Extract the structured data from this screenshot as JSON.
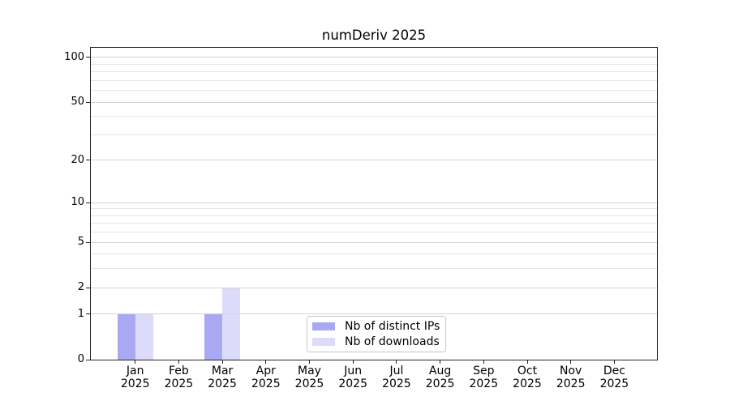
{
  "chart_data": {
    "type": "bar",
    "title": "numDeriv 2025",
    "x_categories": [
      "Jan",
      "Feb",
      "Mar",
      "Apr",
      "May",
      "Jun",
      "Jul",
      "Aug",
      "Sep",
      "Oct",
      "Nov",
      "Dec"
    ],
    "x_year": "2025",
    "series": [
      {
        "name": "Nb of distinct IPs",
        "color": "#a9a9f3",
        "values": [
          1,
          0,
          1,
          0,
          0,
          0,
          0,
          0,
          0,
          0,
          0,
          0
        ]
      },
      {
        "name": "Nb of downloads",
        "color": "#dcdcfa",
        "values": [
          1,
          0,
          2,
          0,
          0,
          0,
          0,
          0,
          0,
          0,
          0,
          0
        ]
      }
    ],
    "yscale": "log10(value+1)",
    "ylim": [
      0,
      116
    ],
    "y_major_ticks": [
      0,
      1,
      2,
      5,
      10,
      20,
      50,
      100
    ],
    "y_minor_gridlines": [
      3,
      4,
      6,
      7,
      8,
      9,
      30,
      40,
      60,
      70,
      80,
      90
    ],
    "grid": true,
    "legend_position": "inside-bottom-center"
  },
  "colors": {
    "bar_distinct_ips": "#a9a9f3",
    "bar_downloads": "#dcdcfa",
    "grid_major": "#d3d3d3",
    "grid_minor": "#e6e6e6",
    "axis": "#222222",
    "legend_border": "#c9c9c9",
    "background": "#ffffff",
    "text": "#000000"
  }
}
